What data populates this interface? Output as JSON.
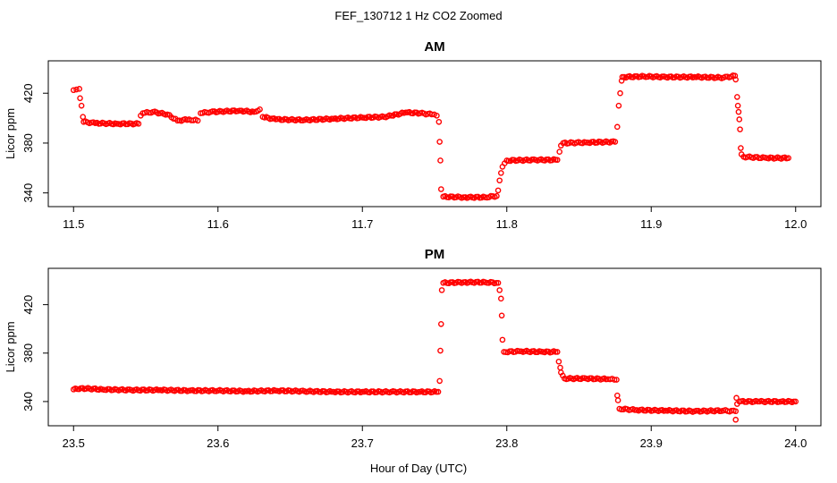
{
  "figure_title": "FEF_130712  1 Hz CO2 Zoomed",
  "xlabel": "Hour of Day (UTC)",
  "colors": {
    "points": "#ff0000",
    "axes": "#000000",
    "background": "#ffffff"
  },
  "chart_data": [
    {
      "type": "scatter",
      "title": "AM",
      "ylabel": "Licor ppm",
      "xlim": [
        11.5,
        12.0
      ],
      "ylim": [
        329,
        446
      ],
      "x_ticks": [
        "11.5",
        "11.6",
        "11.7",
        "11.8",
        "11.9",
        "12.0"
      ],
      "y_ticks": [
        "340",
        "380",
        "420"
      ],
      "grid": false,
      "marker": "open-circle",
      "series": [
        {
          "points": [
            [
              11.5,
              422.5
            ],
            [
              11.502,
              423
            ],
            [
              11.504,
              423.5
            ],
            [
              11.5045,
              416
            ],
            [
              11.5055,
              410
            ],
            [
              11.5065,
              401
            ],
            [
              11.507,
              397
            ],
            [
              11.515,
              396
            ],
            [
              11.53,
              395.5
            ],
            [
              11.545,
              395.5
            ],
            [
              11.5465,
              402
            ],
            [
              11.548,
              404
            ],
            [
              11.555,
              405
            ],
            [
              11.565,
              403
            ],
            [
              11.572,
              398
            ],
            [
              11.58,
              399
            ],
            [
              11.586,
              398
            ],
            [
              11.588,
              404
            ],
            [
              11.595,
              405
            ],
            [
              11.605,
              405.5
            ],
            [
              11.615,
              406
            ],
            [
              11.625,
              405
            ],
            [
              11.629,
              407
            ],
            [
              11.631,
              401
            ],
            [
              11.64,
              399
            ],
            [
              11.66,
              398.5
            ],
            [
              11.68,
              399.5
            ],
            [
              11.7,
              400.5
            ],
            [
              11.715,
              401
            ],
            [
              11.72,
              402
            ],
            [
              11.73,
              404.5
            ],
            [
              11.74,
              404
            ],
            [
              11.748,
              403
            ],
            [
              11.7515,
              402
            ],
            [
              11.753,
              397
            ],
            [
              11.7535,
              381
            ],
            [
              11.754,
              366
            ],
            [
              11.7545,
              343
            ],
            [
              11.756,
              337
            ],
            [
              11.77,
              336.5
            ],
            [
              11.785,
              336.5
            ],
            [
              11.793,
              337.5
            ],
            [
              11.794,
              342
            ],
            [
              11.795,
              350
            ],
            [
              11.796,
              356
            ],
            [
              11.797,
              361
            ],
            [
              11.8,
              366
            ],
            [
              11.82,
              366.5
            ],
            [
              11.835,
              366.5
            ],
            [
              11.8365,
              373
            ],
            [
              11.8375,
              378
            ],
            [
              11.839,
              380
            ],
            [
              11.855,
              380.5
            ],
            [
              11.875,
              381
            ],
            [
              11.8765,
              393
            ],
            [
              11.8775,
              410
            ],
            [
              11.8785,
              420
            ],
            [
              11.8795,
              430
            ],
            [
              11.88,
              433
            ],
            [
              11.895,
              433.5
            ],
            [
              11.91,
              433
            ],
            [
              11.93,
              433
            ],
            [
              11.95,
              432.5
            ],
            [
              11.958,
              434
            ],
            [
              11.9585,
              431
            ],
            [
              11.9595,
              417
            ],
            [
              11.96,
              410
            ],
            [
              11.9605,
              405
            ],
            [
              11.961,
              399
            ],
            [
              11.9615,
              391
            ],
            [
              11.962,
              376
            ],
            [
              11.9625,
              371
            ],
            [
              11.964,
              369
            ],
            [
              11.98,
              368
            ],
            [
              11.995,
              368
            ]
          ]
        }
      ]
    },
    {
      "type": "scatter",
      "title": "PM",
      "ylabel": "Licor ppm",
      "xlim": [
        23.5,
        24.0
      ],
      "ylim": [
        320,
        450
      ],
      "x_ticks": [
        "23.5",
        "23.6",
        "23.7",
        "23.8",
        "23.9",
        "24.0"
      ],
      "y_ticks": [
        "340",
        "380",
        "420"
      ],
      "grid": false,
      "marker": "open-circle",
      "series": [
        {
          "points": [
            [
              23.5,
              350
            ],
            [
              23.505,
              351
            ],
            [
              23.52,
              350
            ],
            [
              23.54,
              349.5
            ],
            [
              23.56,
              349.5
            ],
            [
              23.58,
              349
            ],
            [
              23.6,
              349
            ],
            [
              23.62,
              348.5
            ],
            [
              23.64,
              349
            ],
            [
              23.66,
              348.5
            ],
            [
              23.68,
              348
            ],
            [
              23.7,
              348
            ],
            [
              23.72,
              348
            ],
            [
              23.74,
              348
            ],
            [
              23.7525,
              348
            ],
            [
              23.7535,
              357
            ],
            [
              23.754,
              382
            ],
            [
              23.7545,
              404
            ],
            [
              23.755,
              432
            ],
            [
              23.756,
              438
            ],
            [
              23.77,
              438.5
            ],
            [
              23.785,
              438.5
            ],
            [
              23.794,
              438
            ],
            [
              23.795,
              432
            ],
            [
              23.796,
              425
            ],
            [
              23.7965,
              411
            ],
            [
              23.797,
              391
            ],
            [
              23.798,
              381
            ],
            [
              23.81,
              381.5
            ],
            [
              23.825,
              381
            ],
            [
              23.835,
              381
            ],
            [
              23.836,
              373
            ],
            [
              23.837,
              368
            ],
            [
              23.8375,
              364
            ],
            [
              23.84,
              359
            ],
            [
              23.855,
              359
            ],
            [
              23.87,
              358.5
            ],
            [
              23.876,
              358
            ],
            [
              23.8765,
              345
            ],
            [
              23.877,
              341
            ],
            [
              23.878,
              334
            ],
            [
              23.89,
              333
            ],
            [
              23.91,
              332.5
            ],
            [
              23.93,
              332
            ],
            [
              23.95,
              332.5
            ],
            [
              23.9585,
              332
            ],
            [
              23.9585,
              325
            ],
            [
              23.959,
              343
            ],
            [
              23.9595,
              338
            ],
            [
              23.961,
              340
            ],
            [
              23.975,
              340
            ],
            [
              23.99,
              340
            ],
            [
              24.0,
              340
            ]
          ]
        }
      ]
    }
  ]
}
